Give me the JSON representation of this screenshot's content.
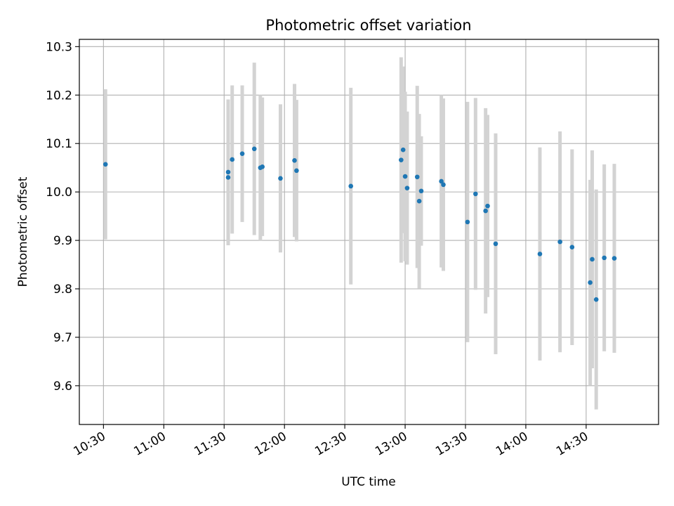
{
  "chart_data": {
    "type": "scatter",
    "title": "Photometric offset variation",
    "xlabel": "UTC time",
    "ylabel": "Photometric offset",
    "x_ticks": [
      "10:30",
      "11:00",
      "11:30",
      "12:00",
      "12:30",
      "13:00",
      "13:30",
      "14:00",
      "14:30"
    ],
    "y_ticks": [
      "9.6",
      "9.7",
      "9.8",
      "9.9",
      "10.0",
      "10.1",
      "10.2",
      "10.3"
    ],
    "xlim": [
      "10:18",
      "15:06"
    ],
    "ylim": [
      9.52,
      10.315
    ],
    "grid": true,
    "colors": {
      "marker": "#1f77b4",
      "errorbar": "#d3d3d3",
      "grid": "#b0b0b0"
    },
    "points": [
      {
        "x": "10:31",
        "y": 10.057,
        "err": 0.155
      },
      {
        "x": "11:32",
        "y": 10.03,
        "err": 0.14
      },
      {
        "x": "11:32",
        "y": 10.041,
        "err": 0.15
      },
      {
        "x": "11:34",
        "y": 10.067,
        "err": 0.153
      },
      {
        "x": "11:39",
        "y": 10.079,
        "err": 0.141
      },
      {
        "x": "11:45",
        "y": 10.089,
        "err": 0.178
      },
      {
        "x": "11:48",
        "y": 10.05,
        "err": 0.15
      },
      {
        "x": "11:49",
        "y": 10.052,
        "err": 0.143
      },
      {
        "x": "11:58",
        "y": 10.028,
        "err": 0.153
      },
      {
        "x": "12:05",
        "y": 10.065,
        "err": 0.158
      },
      {
        "x": "12:06",
        "y": 10.044,
        "err": 0.146
      },
      {
        "x": "12:33",
        "y": 10.012,
        "err": 0.203
      },
      {
        "x": "12:58",
        "y": 10.066,
        "err": 0.212
      },
      {
        "x": "12:59",
        "y": 10.087,
        "err": 0.172
      },
      {
        "x": "13:00",
        "y": 10.032,
        "err": 0.175
      },
      {
        "x": "13:01",
        "y": 10.008,
        "err": 0.158
      },
      {
        "x": "13:06",
        "y": 10.031,
        "err": 0.188
      },
      {
        "x": "13:07",
        "y": 9.981,
        "err": 0.18
      },
      {
        "x": "13:08",
        "y": 10.002,
        "err": 0.113
      },
      {
        "x": "13:18",
        "y": 10.022,
        "err": 0.178
      },
      {
        "x": "13:19",
        "y": 10.015,
        "err": 0.178
      },
      {
        "x": "13:31",
        "y": 9.938,
        "err": 0.248
      },
      {
        "x": "13:35",
        "y": 9.996,
        "err": 0.198
      },
      {
        "x": "13:40",
        "y": 9.961,
        "err": 0.212
      },
      {
        "x": "13:41",
        "y": 9.971,
        "err": 0.188
      },
      {
        "x": "13:45",
        "y": 9.893,
        "err": 0.228
      },
      {
        "x": "14:07",
        "y": 9.872,
        "err": 0.22
      },
      {
        "x": "14:17",
        "y": 9.897,
        "err": 0.228
      },
      {
        "x": "14:23",
        "y": 9.886,
        "err": 0.202
      },
      {
        "x": "14:32",
        "y": 9.813,
        "err": 0.212
      },
      {
        "x": "14:33",
        "y": 9.861,
        "err": 0.225
      },
      {
        "x": "14:35",
        "y": 9.778,
        "err": 0.227
      },
      {
        "x": "14:39",
        "y": 9.864,
        "err": 0.193
      },
      {
        "x": "14:44",
        "y": 9.863,
        "err": 0.195
      }
    ]
  }
}
